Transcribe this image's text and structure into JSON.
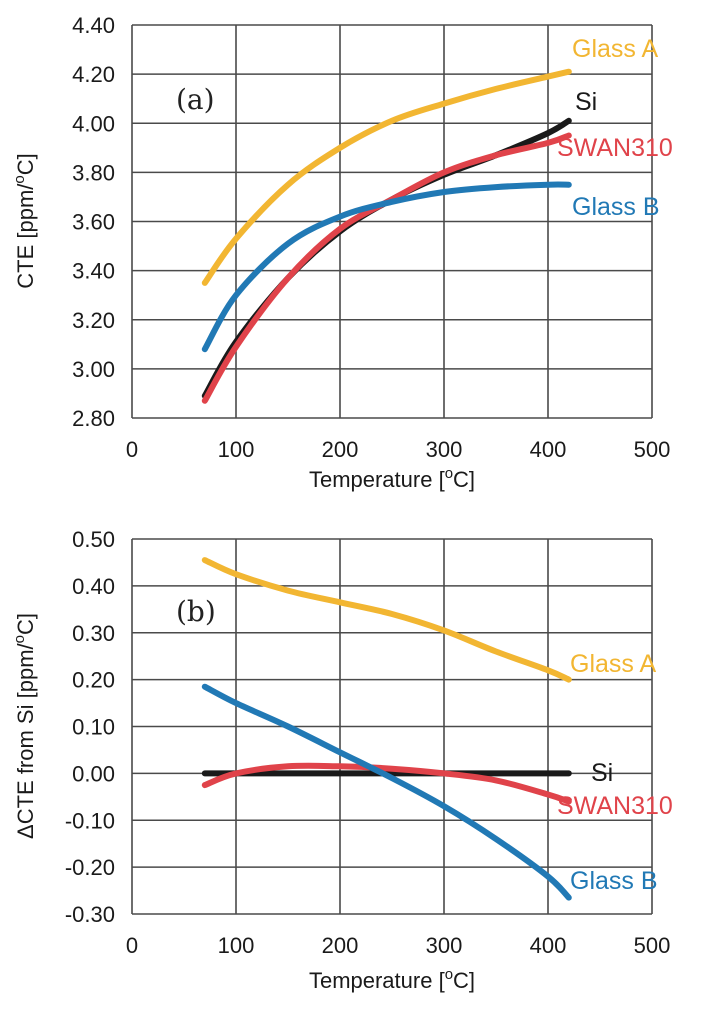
{
  "chart_data": [
    {
      "type": "line",
      "panel_label": "(a)",
      "xlabel_text": "Temperature ",
      "xlabel_unit_open": "[",
      "xlabel_unit_sup": "o",
      "xlabel_unit_close": "C]",
      "ylabel_text": "CTE [ppm/",
      "ylabel_unit_sup": "o",
      "ylabel_unit_close": "C]",
      "xlim": [
        0,
        500
      ],
      "ylim": [
        2.8,
        4.4
      ],
      "x_ticks": [
        "0",
        "100",
        "200",
        "300",
        "400",
        "500"
      ],
      "y_ticks": [
        "2.80",
        "3.00",
        "3.20",
        "3.40",
        "3.60",
        "3.80",
        "4.00",
        "4.20",
        "4.40"
      ],
      "grid": true,
      "series": [
        {
          "name": "Glass A",
          "color": "#f2b632",
          "x": [
            70,
            100,
            150,
            200,
            250,
            300,
            350,
            400,
            420
          ],
          "y": [
            3.35,
            3.53,
            3.75,
            3.9,
            4.01,
            4.08,
            4.14,
            4.19,
            4.21
          ]
        },
        {
          "name": "Si",
          "color": "#1a1a1a",
          "x": [
            70,
            100,
            150,
            200,
            250,
            300,
            350,
            400,
            420
          ],
          "y": [
            2.89,
            3.11,
            3.37,
            3.56,
            3.69,
            3.79,
            3.87,
            3.96,
            4.01
          ]
        },
        {
          "name": "SWAN310",
          "color": "#e0434a",
          "x": [
            70,
            100,
            150,
            200,
            250,
            300,
            350,
            400,
            420
          ],
          "y": [
            2.87,
            3.09,
            3.37,
            3.57,
            3.69,
            3.8,
            3.87,
            3.92,
            3.95
          ]
        },
        {
          "name": "Glass B",
          "color": "#2179b5",
          "x": [
            70,
            100,
            150,
            200,
            250,
            300,
            350,
            400,
            420
          ],
          "y": [
            3.08,
            3.3,
            3.51,
            3.62,
            3.68,
            3.72,
            3.74,
            3.75,
            3.75
          ]
        }
      ]
    },
    {
      "type": "line",
      "panel_label": "(b)",
      "xlabel_text": "Temperature ",
      "xlabel_unit_open": "[",
      "xlabel_unit_sup": "o",
      "xlabel_unit_close": "C]",
      "ylabel_text": "ΔCTE from Si [ppm/",
      "ylabel_unit_sup": "o",
      "ylabel_unit_close": "C]",
      "xlim": [
        0,
        500
      ],
      "ylim": [
        -0.3,
        0.5
      ],
      "x_ticks": [
        "0",
        "100",
        "200",
        "300",
        "400",
        "500"
      ],
      "y_ticks": [
        "-0.30",
        "-0.20",
        "-0.10",
        "0.00",
        "0.10",
        "0.20",
        "0.30",
        "0.40",
        "0.50"
      ],
      "grid": true,
      "series": [
        {
          "name": "Glass A",
          "color": "#f2b632",
          "x": [
            70,
            100,
            150,
            200,
            250,
            300,
            350,
            400,
            420
          ],
          "y": [
            0.455,
            0.425,
            0.39,
            0.365,
            0.34,
            0.305,
            0.26,
            0.22,
            0.2
          ]
        },
        {
          "name": "Si",
          "color": "#1a1a1a",
          "x": [
            70,
            420
          ],
          "y": [
            0.0,
            0.0
          ]
        },
        {
          "name": "SWAN310",
          "color": "#e0434a",
          "x": [
            70,
            100,
            150,
            200,
            250,
            300,
            350,
            400,
            420
          ],
          "y": [
            -0.025,
            0.0,
            0.015,
            0.015,
            0.01,
            0.0,
            -0.015,
            -0.045,
            -0.06
          ]
        },
        {
          "name": "Glass B",
          "color": "#2179b5",
          "x": [
            70,
            100,
            150,
            200,
            250,
            300,
            350,
            400,
            420
          ],
          "y": [
            0.185,
            0.15,
            0.1,
            0.045,
            -0.01,
            -0.07,
            -0.14,
            -0.22,
            -0.265
          ]
        }
      ]
    }
  ]
}
